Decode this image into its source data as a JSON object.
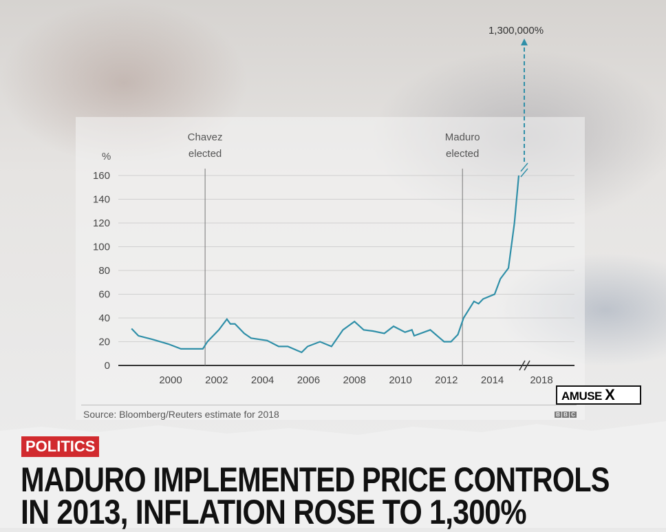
{
  "chart_data": {
    "type": "line",
    "ylabel": "%",
    "ylim": [
      0,
      160
    ],
    "yticks": [
      0,
      20,
      40,
      60,
      80,
      100,
      120,
      140,
      160
    ],
    "xticks": [
      "2000",
      "2002",
      "2004",
      "2006",
      "2008",
      "2010",
      "2012",
      "2014",
      "2018"
    ],
    "grid": true,
    "axis_break": "between 2014 and 2018",
    "series": [
      {
        "color": "#2f8fa8",
        "x": [
          1998.3,
          1998.6,
          1999.2,
          1999.9,
          2000.45,
          2001.4,
          2001.6,
          2002.1,
          2002.45,
          2002.6,
          2002.8,
          2003.2,
          2003.5,
          2004.2,
          2004.7,
          2005.1,
          2005.7,
          2005.96,
          2006.5,
          2007.0,
          2007.5,
          2008.0,
          2008.4,
          2008.8,
          2009.3,
          2009.7,
          2010.2,
          2010.5,
          2010.6,
          2011.3,
          2011.9,
          2012.2,
          2012.5,
          2012.75,
          2013.2,
          2013.4,
          2013.6,
          2014.1,
          2014.35,
          2014.7,
          2014.96,
          2015.15
        ],
        "y": [
          31,
          25,
          22,
          18,
          14,
          14,
          20,
          30,
          39,
          35,
          35,
          27,
          23,
          21,
          16,
          16,
          11,
          16,
          20,
          16,
          30,
          37,
          30,
          29,
          27,
          33,
          28,
          30,
          25,
          30,
          20,
          20,
          26,
          40,
          54,
          52,
          56,
          60,
          73,
          82,
          120,
          160
        ]
      }
    ],
    "estimate_2018": {
      "value_label": "1,300,000%",
      "style": "dashed arrow"
    },
    "annotations": [
      {
        "label_line1": "Chavez",
        "label_line2": "elected",
        "x": 2001.5
      },
      {
        "label_line1": "Maduro",
        "label_line2": "elected",
        "x": 2012.7
      }
    ],
    "source": "Source: Bloomberg/Reuters estimate for 2018"
  },
  "branding": {
    "bbc": [
      "B",
      "B",
      "C"
    ],
    "amuse": "AMUSE",
    "amuse_x": "X"
  },
  "tag": "POLITICS",
  "headline": {
    "line1": "MADURO IMPLEMENTED PRICE CONTROLS",
    "line2": "IN 2013, INFLATION ROSE TO 1,300%"
  }
}
